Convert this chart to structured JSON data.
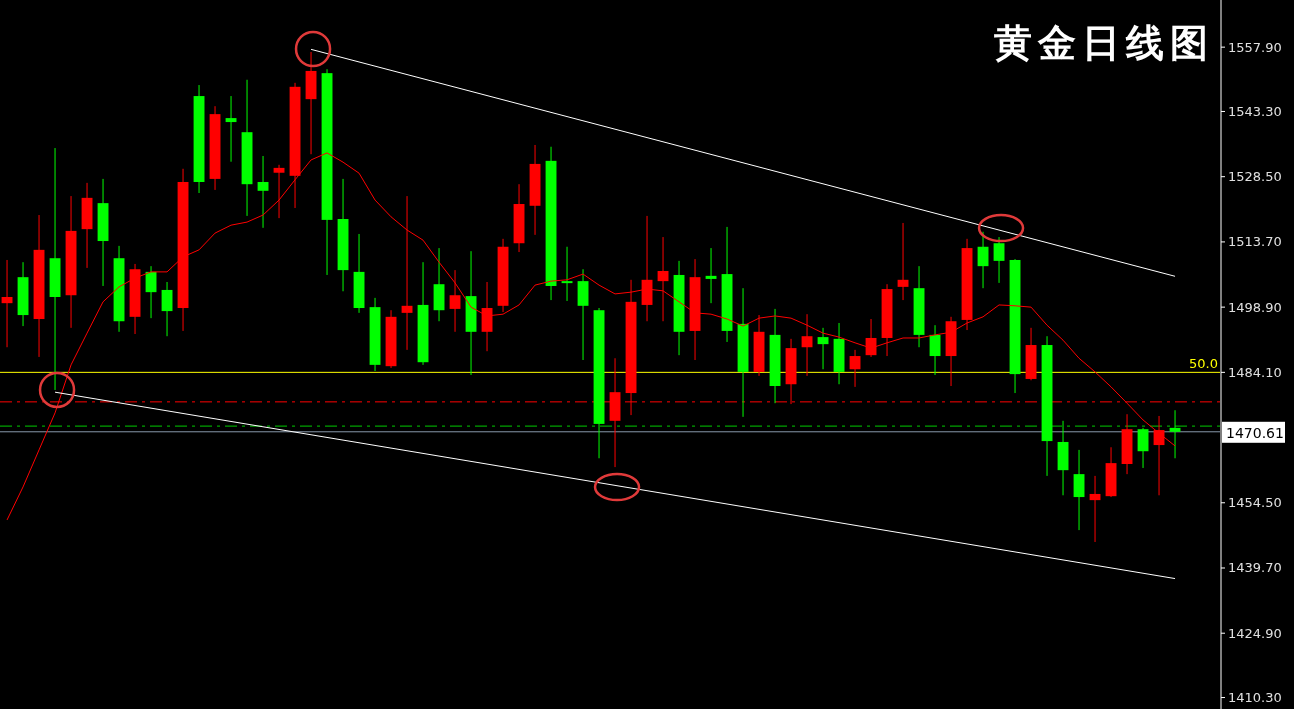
{
  "chart_data": {
    "type": "candlestick",
    "title": "黄金日线图",
    "categories": [
      null,
      null,
      null,
      null,
      null,
      null,
      null,
      null,
      null,
      null,
      null,
      null,
      null,
      null,
      null,
      null,
      null,
      null,
      null,
      null,
      null,
      null,
      null,
      null,
      null,
      null,
      null,
      null,
      null,
      null,
      null,
      null,
      null,
      null,
      null,
      null,
      null,
      null,
      null,
      null,
      null,
      null,
      null,
      null,
      null,
      null,
      null,
      null,
      null,
      null,
      null,
      null,
      null,
      null,
      null,
      null,
      null,
      null,
      null,
      null,
      null,
      null,
      null,
      null,
      null,
      null,
      null,
      null,
      null,
      null,
      null,
      null,
      null,
      null
    ],
    "ohlc": [
      [
        1499.8,
        1509.6,
        1489.8,
        1501.2
      ],
      [
        1505.7,
        1509.1,
        1494.6,
        1497.1
      ],
      [
        1496.2,
        1519.8,
        1487.6,
        1511.9
      ],
      [
        1510.0,
        1535.0,
        1480.1,
        1501.2
      ],
      [
        1501.6,
        1524.1,
        1494.2,
        1516.2
      ],
      [
        1516.6,
        1527.1,
        1507.8,
        1523.7
      ],
      [
        1522.5,
        1528.0,
        1503.7,
        1513.9
      ],
      [
        1510.0,
        1512.8,
        1493.3,
        1495.7
      ],
      [
        1496.7,
        1508.7,
        1492.8,
        1507.5
      ],
      [
        1506.9,
        1508.2,
        1496.4,
        1502.3
      ],
      [
        1502.8,
        1504.6,
        1492.3,
        1498.0
      ],
      [
        1498.7,
        1530.3,
        1493.5,
        1527.3
      ],
      [
        1546.8,
        1549.3,
        1524.8,
        1527.3
      ],
      [
        1528.0,
        1544.5,
        1525.5,
        1542.7
      ],
      [
        1541.8,
        1546.8,
        1531.9,
        1540.9
      ],
      [
        1538.6,
        1550.5,
        1519.6,
        1526.8
      ],
      [
        1527.3,
        1533.2,
        1516.9,
        1525.3
      ],
      [
        1529.4,
        1531.2,
        1519.1,
        1530.5
      ],
      [
        1528.7,
        1549.8,
        1521.4,
        1548.9
      ],
      [
        1546.1,
        1556.8,
        1533.6,
        1552.5
      ],
      [
        1552.0,
        1552.9,
        1506.2,
        1518.7
      ],
      [
        1518.9,
        1528.0,
        1502.5,
        1507.3
      ],
      [
        1506.9,
        1515.5,
        1497.6,
        1498.7
      ],
      [
        1498.9,
        1501.0,
        1484.4,
        1485.8
      ],
      [
        1485.5,
        1498.2,
        1485.1,
        1496.7
      ],
      [
        1497.6,
        1524.1,
        1489.2,
        1499.2
      ],
      [
        1499.4,
        1509.1,
        1485.8,
        1486.4
      ],
      [
        1504.1,
        1512.3,
        1495.7,
        1498.2
      ],
      [
        1498.5,
        1507.3,
        1493.3,
        1501.6
      ],
      [
        1501.4,
        1511.6,
        1483.5,
        1493.3
      ],
      [
        1493.3,
        1504.6,
        1488.9,
        1498.7
      ],
      [
        1499.2,
        1514.4,
        1497.8,
        1512.6
      ],
      [
        1513.4,
        1526.8,
        1511.4,
        1522.3
      ],
      [
        1521.9,
        1535.7,
        1515.3,
        1531.4
      ],
      [
        1532.1,
        1535.3,
        1500.5,
        1503.7
      ],
      [
        1504.8,
        1512.6,
        1500.3,
        1504.4
      ],
      [
        1504.8,
        1507.5,
        1486.9,
        1499.2
      ],
      [
        1498.2,
        1498.7,
        1464.6,
        1472.4
      ],
      [
        1473.1,
        1487.3,
        1462.6,
        1479.6
      ],
      [
        1479.4,
        1505.1,
        1474.4,
        1500.1
      ],
      [
        1499.4,
        1519.6,
        1495.7,
        1505.1
      ],
      [
        1504.8,
        1514.8,
        1495.7,
        1507.1
      ],
      [
        1506.2,
        1509.4,
        1488.0,
        1493.3
      ],
      [
        1493.5,
        1509.8,
        1486.9,
        1505.7
      ],
      [
        1506.0,
        1512.3,
        1499.8,
        1505.3
      ],
      [
        1506.4,
        1517.1,
        1491.0,
        1493.5
      ],
      [
        1495.1,
        1503.2,
        1474.0,
        1484.2
      ],
      [
        1484.2,
        1497.1,
        1483.3,
        1493.3
      ],
      [
        1492.6,
        1498.5,
        1477.1,
        1481.0
      ],
      [
        1481.4,
        1491.7,
        1476.9,
        1489.6
      ],
      [
        1489.8,
        1497.3,
        1483.3,
        1492.3
      ],
      [
        1492.1,
        1494.2,
        1484.8,
        1490.5
      ],
      [
        1491.7,
        1495.3,
        1481.4,
        1484.2
      ],
      [
        1484.8,
        1489.2,
        1480.8,
        1487.8
      ],
      [
        1488.0,
        1496.2,
        1487.6,
        1491.9
      ],
      [
        1491.9,
        1504.1,
        1487.8,
        1503.0
      ],
      [
        1503.5,
        1518.0,
        1500.5,
        1505.1
      ],
      [
        1503.2,
        1508.2,
        1489.8,
        1492.6
      ],
      [
        1492.6,
        1494.8,
        1483.5,
        1487.8
      ],
      [
        1487.8,
        1496.7,
        1481.0,
        1495.7
      ],
      [
        1496.0,
        1514.4,
        1493.7,
        1512.3
      ],
      [
        1512.6,
        1516.0,
        1503.2,
        1508.2
      ],
      [
        1513.4,
        1514.8,
        1504.4,
        1509.4
      ],
      [
        1509.6,
        1509.8,
        1479.4,
        1483.7
      ],
      [
        1482.6,
        1494.2,
        1482.3,
        1490.3
      ],
      [
        1490.3,
        1492.3,
        1460.6,
        1468.5
      ],
      [
        1468.3,
        1473.1,
        1456.2,
        1461.9
      ],
      [
        1461.0,
        1466.5,
        1448.3,
        1455.8
      ],
      [
        1455.1,
        1460.6,
        1445.6,
        1456.5
      ],
      [
        1456.0,
        1467.1,
        1455.8,
        1463.5
      ],
      [
        1463.3,
        1474.6,
        1461.0,
        1471.2
      ],
      [
        1471.2,
        1471.5,
        1462.4,
        1466.2
      ],
      [
        1467.6,
        1474.2,
        1456.2,
        1471.0
      ],
      [
        1471.5,
        1475.5,
        1464.6,
        1470.61
      ]
    ],
    "colors": [
      "#ff0000",
      "#00ff00",
      "#ff0000",
      "#00ff00",
      "#ff0000",
      "#ff0000",
      "#00ff00",
      "#00ff00",
      "#ff0000",
      "#00ff00",
      "#00ff00",
      "#ff0000",
      "#00ff00",
      "#ff0000",
      "#00ff00",
      "#00ff00",
      "#00ff00",
      "#ff0000",
      "#ff0000",
      "#ff0000",
      "#00ff00",
      "#00ff00",
      "#00ff00",
      "#00ff00",
      "#ff0000",
      "#ff0000",
      "#00ff00",
      "#00ff00",
      "#ff0000",
      "#00ff00",
      "#ff0000",
      "#ff0000",
      "#ff0000",
      "#ff0000",
      "#00ff00",
      "#00ff00",
      "#00ff00",
      "#00ff00",
      "#ff0000",
      "#ff0000",
      "#ff0000",
      "#ff0000",
      "#00ff00",
      "#ff0000",
      "#00ff00",
      "#00ff00",
      "#00ff00",
      "#ff0000",
      "#00ff00",
      "#ff0000",
      "#ff0000",
      "#00ff00",
      "#00ff00",
      "#ff0000",
      "#ff0000",
      "#ff0000",
      "#ff0000",
      "#00ff00",
      "#00ff00",
      "#ff0000",
      "#ff0000",
      "#00ff00",
      "#00ff00",
      "#00ff00",
      "#ff0000",
      "#00ff00",
      "#00ff00",
      "#00ff00",
      "#ff0000",
      "#ff0000",
      "#ff0000",
      "#00ff00",
      "#ff0000",
      "#00ff00"
    ],
    "series": [
      {
        "type": "line",
        "color": "#ff0000",
        "values": [
          1450.6,
          1458.1,
          1466.5,
          1474.9,
          1485.8,
          1493.0,
          1500.1,
          1503.5,
          1505.5,
          1506.9,
          1506.9,
          1510.3,
          1511.9,
          1515.7,
          1517.5,
          1518.2,
          1519.8,
          1523.2,
          1527.8,
          1532.3,
          1533.9,
          1531.8,
          1529.3,
          1523.2,
          1519.4,
          1516.4,
          1514.1,
          1509.1,
          1504.4,
          1498.9,
          1496.9,
          1497.3,
          1499.4,
          1503.9,
          1504.8,
          1505.1,
          1506.4,
          1503.9,
          1501.9,
          1502.3,
          1503.0,
          1502.6,
          1500.1,
          1497.6,
          1497.3,
          1496.2,
          1494.6,
          1496.4,
          1496.9,
          1496.4,
          1494.8,
          1493.0,
          1492.1,
          1490.8,
          1489.6,
          1490.8,
          1491.9,
          1491.9,
          1492.6,
          1493.2,
          1495.3,
          1496.7,
          1499.4,
          1499.2,
          1498.9,
          1494.8,
          1491.4,
          1487.3,
          1484.2,
          1480.8,
          1477.1,
          1473.3,
          1470.3,
          1467.4
        ]
      },
      {
        "type": "line",
        "color": "#ffffff",
        "values": [
          null,
          null,
          null,
          null,
          null,
          null,
          null,
          null,
          null,
          null,
          null,
          null,
          null,
          null,
          null,
          null,
          null,
          null,
          null,
          1557.4,
          null,
          null,
          null,
          null,
          null,
          null,
          null,
          null,
          null,
          null,
          null,
          null,
          null,
          null,
          null,
          null,
          null,
          null,
          null,
          null,
          null,
          null,
          null,
          null,
          null,
          null,
          null,
          null,
          null,
          null,
          null,
          null,
          null,
          null,
          null,
          null,
          null,
          null,
          null,
          null,
          null,
          null,
          null,
          null,
          null,
          null,
          null,
          null,
          null,
          null,
          null,
          null,
          null,
          1505.9
        ]
      },
      {
        "type": "line",
        "color": "#ffffff",
        "values": [
          null,
          null,
          null,
          1479.6,
          null,
          null,
          null,
          null,
          null,
          null,
          null,
          null,
          null,
          null,
          null,
          null,
          null,
          null,
          null,
          null,
          null,
          null,
          null,
          null,
          null,
          null,
          null,
          null,
          null,
          null,
          null,
          null,
          null,
          null,
          null,
          null,
          null,
          null,
          null,
          null,
          null,
          null,
          null,
          null,
          null,
          null,
          null,
          null,
          null,
          null,
          null,
          null,
          null,
          null,
          null,
          null,
          null,
          null,
          null,
          null,
          null,
          null,
          null,
          null,
          null,
          null,
          null,
          null,
          null,
          null,
          null,
          null,
          null,
          1437.3
        ]
      }
    ],
    "ylim": [
      1407.7,
      1568.6
    ],
    "yticks": [
      {
        "value": 1410.3,
        "label": "1410.30"
      },
      {
        "value": 1424.9,
        "label": "1424.90"
      },
      {
        "value": 1439.7,
        "label": "1439.70"
      },
      {
        "value": 1454.5,
        "label": "1454.50"
      },
      {
        "value": 1484.1,
        "label": "1484.10"
      },
      {
        "value": 1498.9,
        "label": "1498.90"
      },
      {
        "value": 1513.7,
        "label": "1513.70"
      },
      {
        "value": 1528.5,
        "label": "1528.50"
      },
      {
        "value": 1543.3,
        "label": "1543.30"
      },
      {
        "value": 1557.9,
        "label": "1557.90"
      }
    ],
    "annotations": [
      {
        "text": "50.0",
        "y": 1484.1
      }
    ],
    "ref_lines": [
      {
        "axis": "y",
        "value": 1484.1,
        "color": "#ffff00"
      },
      {
        "axis": "y",
        "value": 1477.4,
        "color": "#ff0000",
        "line_style": "dashed"
      },
      {
        "axis": "y",
        "value": 1471.9,
        "color": "#00cc00",
        "line_style": "dashed"
      },
      {
        "axis": "y",
        "value": 1470.61,
        "label": "1470.61",
        "color": "#8899aa"
      }
    ]
  }
}
